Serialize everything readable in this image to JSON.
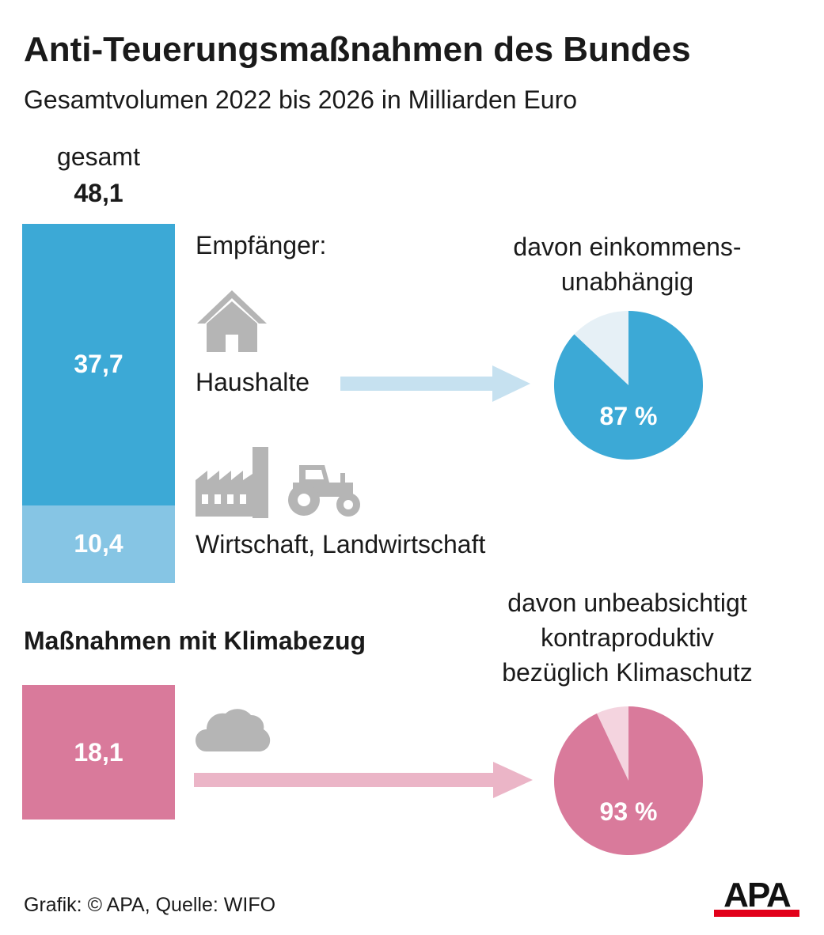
{
  "title": "Anti-Teuerungsmaßnahmen des Bundes",
  "subtitle": "Gesamtvolumen 2022 bis 2026 in Milliarden Euro",
  "total": {
    "label": "gesamt",
    "value": "48,1"
  },
  "recipients_label": "Empfänger:",
  "climate_section_label": "Maßnahmen mit Klimabezug",
  "source": "Grafik: © APA, Quelle: WIFO",
  "logo_text": "APA",
  "colors": {
    "households": "#3ca9d6",
    "business": "#86c5e4",
    "climate": "#d97a9b",
    "climate_light": "#f4d4df",
    "households_light": "#e6f0f6",
    "arrow_blue": "#c6e1f0",
    "arrow_pink": "#ebb5c7",
    "icon_gray": "#b5b5b5",
    "logo_red": "#e2001a"
  },
  "chart_data": [
    {
      "type": "bar",
      "title": "gesamt",
      "stacked": true,
      "unit": "Milliarden Euro",
      "total": 48.1,
      "categories": [
        "Haushalte",
        "Wirtschaft, Landwirtschaft"
      ],
      "values": [
        37.7,
        10.4
      ],
      "value_labels": [
        "37,7",
        "10,4"
      ],
      "icons": [
        "house-icon",
        "factory-icon",
        "tractor-icon"
      ]
    },
    {
      "type": "pie",
      "title": "davon einkommens-unabhängig",
      "title_lines": [
        "davon einkommens-",
        "unabhängig"
      ],
      "category": "Haushalte",
      "values": [
        87,
        13
      ],
      "label": "87 %"
    },
    {
      "type": "bar",
      "title": "Maßnahmen mit Klimabezug",
      "values": [
        18.1
      ],
      "value_labels": [
        "18,1"
      ],
      "icons": [
        "cloud-icon"
      ]
    },
    {
      "type": "pie",
      "title": "davon unbeabsichtigt kontraproduktiv bezüglich Klimaschutz",
      "title_lines": [
        "davon unbeabsichtigt",
        "kontraproduktiv",
        "bezüglich Klimaschutz"
      ],
      "values": [
        93,
        7
      ],
      "label": "93 %"
    }
  ]
}
